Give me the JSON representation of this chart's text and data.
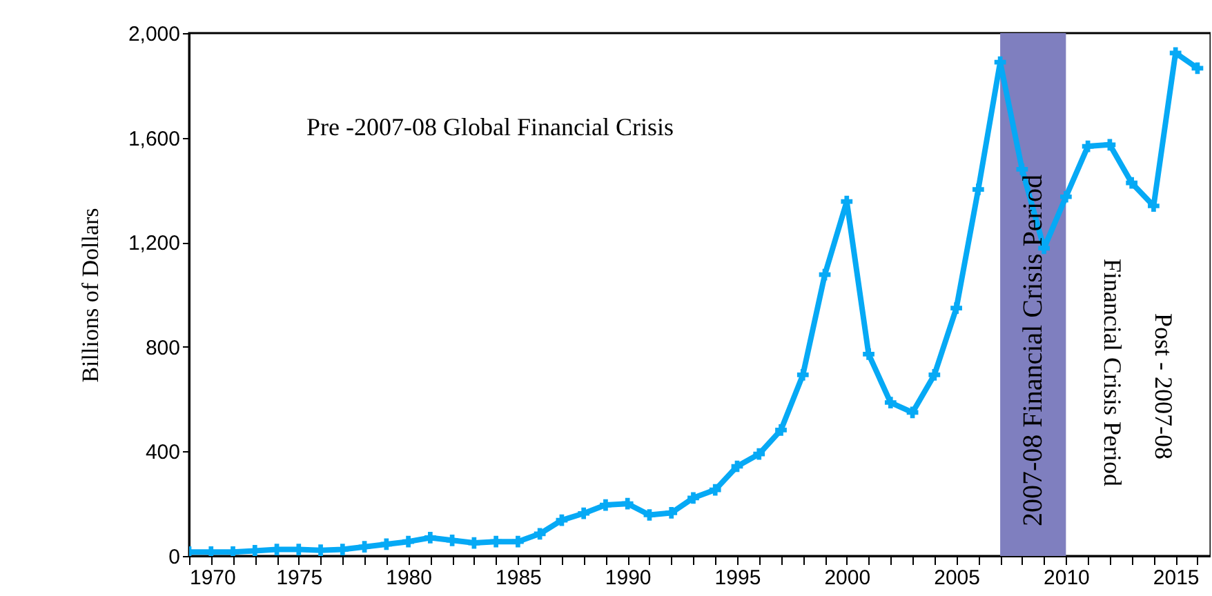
{
  "chart_data": {
    "type": "line",
    "ylabel": "Billions of Dollars",
    "x": [
      1970,
      1971,
      1972,
      1973,
      1974,
      1975,
      1976,
      1977,
      1978,
      1979,
      1980,
      1981,
      1982,
      1983,
      1984,
      1985,
      1986,
      1987,
      1988,
      1989,
      1990,
      1991,
      1992,
      1993,
      1994,
      1995,
      1996,
      1997,
      1998,
      1999,
      2000,
      2001,
      2002,
      2003,
      2004,
      2005,
      2006,
      2007,
      2008,
      2009,
      2010,
      2011,
      2012,
      2013,
      2014,
      2015,
      2016
    ],
    "series": [
      {
        "color": "#06a9f5",
        "values": [
          15,
          15,
          15,
          20,
          25,
          25,
          22,
          25,
          35,
          45,
          55,
          70,
          60,
          50,
          55,
          55,
          85,
          137,
          163,
          195,
          200,
          157,
          165,
          222,
          253,
          343,
          390,
          482,
          693,
          1076,
          1356,
          772,
          587,
          549,
          693,
          948,
          1402,
          1889,
          1479,
          1177,
          1374,
          1567,
          1573,
          1427,
          1339,
          1924,
          1866
        ]
      }
    ],
    "xlim": [
      1970,
      2016.6
    ],
    "xticks": [
      1970,
      {
        "value": 1971,
        "label": null
      },
      {
        "value": 1972,
        "label": null
      },
      {
        "value": 1973,
        "label": null
      },
      {
        "value": 1974,
        "label": null
      },
      1975,
      {
        "value": 1976,
        "label": null
      },
      {
        "value": 1977,
        "label": null
      },
      {
        "value": 1978,
        "label": null
      },
      {
        "value": 1979,
        "label": null
      },
      1980,
      {
        "value": 1981,
        "label": null
      },
      {
        "value": 1982,
        "label": null
      },
      {
        "value": 1983,
        "label": null
      },
      {
        "value": 1984,
        "label": null
      },
      1985,
      {
        "value": 1986,
        "label": null
      },
      {
        "value": 1987,
        "label": null
      },
      {
        "value": 1988,
        "label": null
      },
      {
        "value": 1989,
        "label": null
      },
      1990,
      {
        "value": 1991,
        "label": null
      },
      {
        "value": 1992,
        "label": null
      },
      {
        "value": 1993,
        "label": null
      },
      {
        "value": 1994,
        "label": null
      },
      1995,
      {
        "value": 1996,
        "label": null
      },
      {
        "value": 1997,
        "label": null
      },
      {
        "value": 1998,
        "label": null
      },
      {
        "value": 1999,
        "label": null
      },
      2000,
      {
        "value": 2001,
        "label": null
      },
      {
        "value": 2002,
        "label": null
      },
      {
        "value": 2003,
        "label": null
      },
      {
        "value": 2004,
        "label": null
      },
      2005,
      {
        "value": 2006,
        "label": null
      },
      {
        "value": 2007,
        "label": null
      },
      {
        "value": 2008,
        "label": null
      },
      {
        "value": 2009,
        "label": null
      },
      2010,
      {
        "value": 2011,
        "label": null
      },
      {
        "value": 2012,
        "label": null
      },
      {
        "value": 2013,
        "label": null
      },
      {
        "value": 2014,
        "label": null
      },
      2015,
      {
        "value": 2016,
        "label": null
      }
    ],
    "ylim": [
      0,
      2000
    ],
    "yticks": [
      0,
      400,
      800,
      {
        "value": 1200,
        "label": "1,200"
      },
      {
        "value": 1600,
        "label": "1,600"
      },
      {
        "value": 2000,
        "label": "2,000"
      }
    ],
    "bands": [
      {
        "axis": "x",
        "from": 2007,
        "to": 2010,
        "label": "2007-08 Financial Crisis Period",
        "color": "#7f7fbf"
      }
    ],
    "annotations": [
      "Pre -2007-08 Global Financial Crisis",
      "Financial Crisis Period",
      "Post - 2007-08"
    ],
    "marker": "cross",
    "line_style": "solid",
    "grid": false
  }
}
